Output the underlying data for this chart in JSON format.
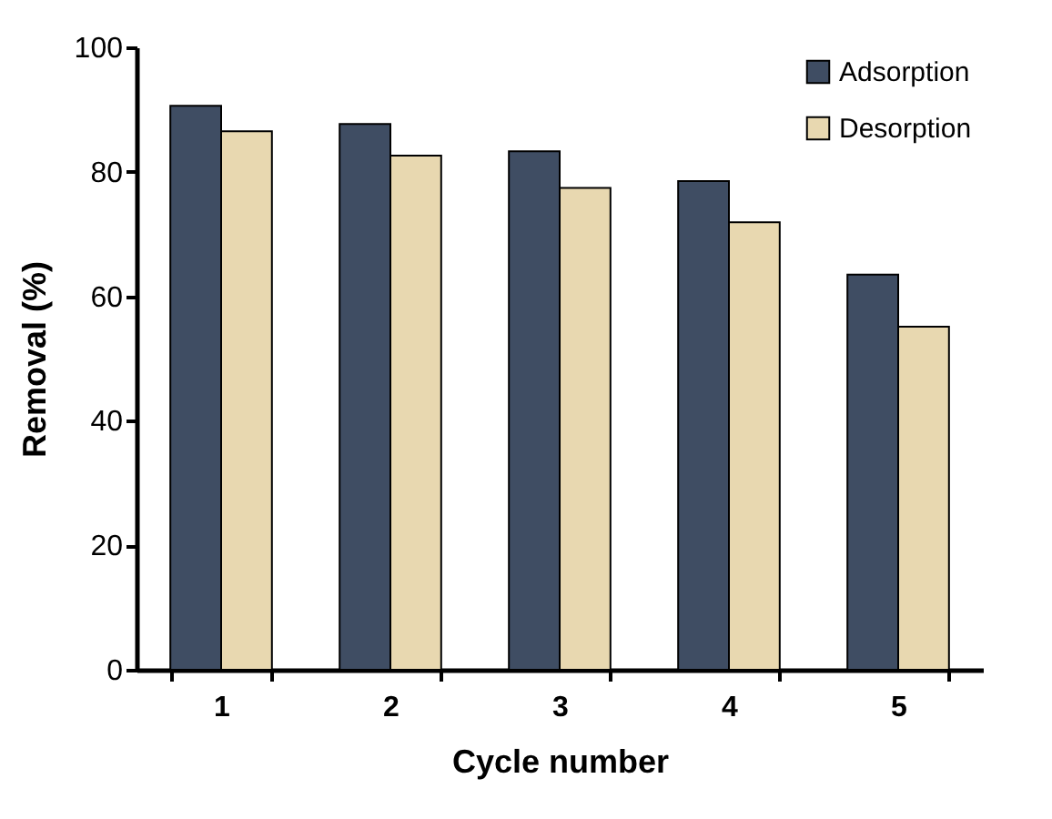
{
  "chart_data": {
    "type": "bar",
    "xlabel": "Cycle number",
    "ylabel": "Removal (%)",
    "categories": [
      "1",
      "2",
      "3",
      "4",
      "5"
    ],
    "series": [
      {
        "name": "Adsorption",
        "color": "#3f4d63",
        "values": [
          90.6,
          87.7,
          83.3,
          78.5,
          63.5
        ]
      },
      {
        "name": "Desorption",
        "color": "#e8d8b0",
        "values": [
          86.5,
          82.6,
          77.4,
          71.9,
          55.1
        ]
      }
    ],
    "ylim": [
      0,
      100
    ],
    "yticks": [
      0,
      20,
      40,
      60,
      80,
      100
    ],
    "grid": false,
    "legend": "top right"
  }
}
